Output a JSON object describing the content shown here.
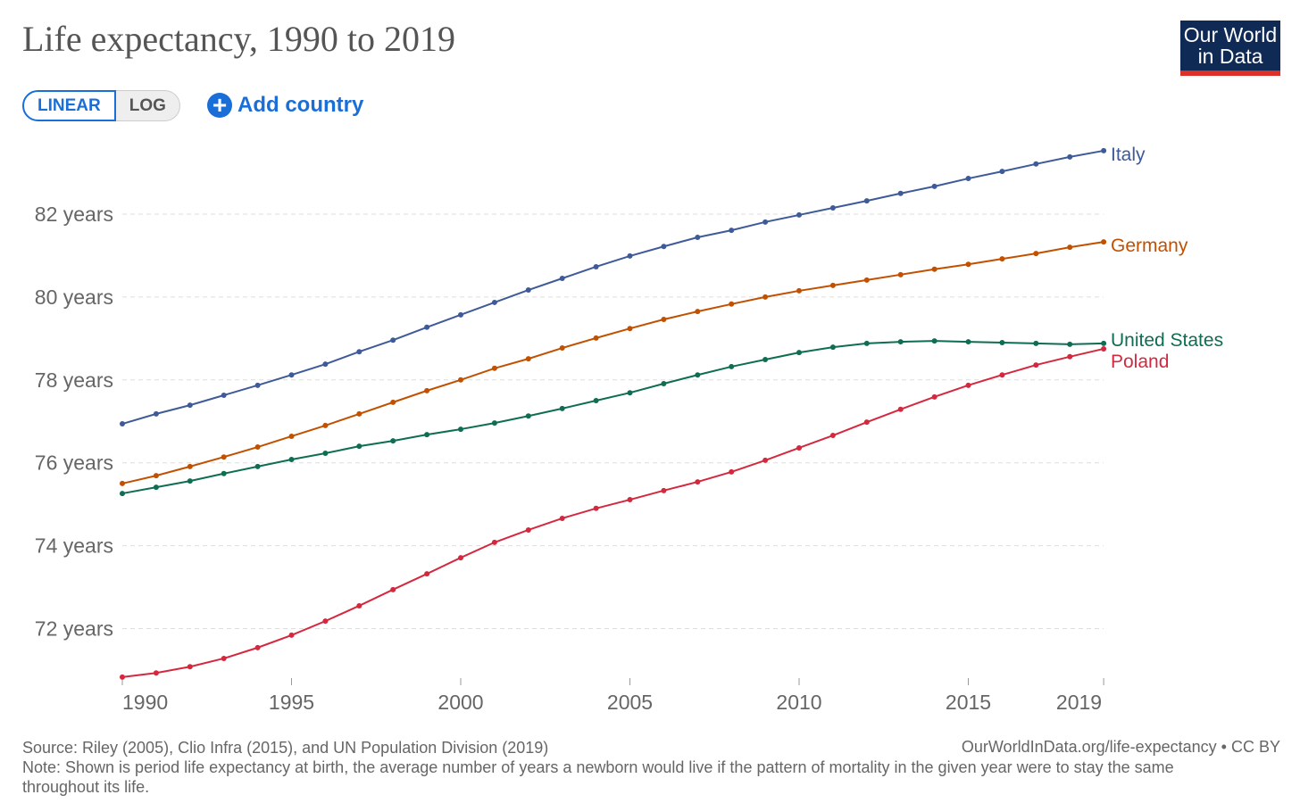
{
  "title": "Life expectancy, 1990 to 2019",
  "logo": {
    "line1": "Our World",
    "line2": "in Data"
  },
  "controls": {
    "linear": "LINEAR",
    "log": "LOG",
    "add_country": "Add country"
  },
  "footer": {
    "source": "Source: Riley (2005), Clio Infra (2015), and UN Population Division (2019)",
    "note": "Note: Shown is period life expectancy at birth, the average number of years a newborn would live if the pattern of mortality in the given year were to stay the same throughout its life.",
    "url": "OurWorldInData.org/life-expectancy • CC BY"
  },
  "chart_data": {
    "type": "line",
    "title": "Life expectancy, 1990 to 2019",
    "grid": true,
    "legend": "right (line end labels)",
    "xlim": [
      1990,
      2019
    ],
    "ylim": [
      70.8,
      83.6
    ],
    "x_ticks": [
      {
        "v": 1990,
        "l": "1990"
      },
      {
        "v": 1995,
        "l": "1995"
      },
      {
        "v": 2000,
        "l": "2000"
      },
      {
        "v": 2005,
        "l": "2005"
      },
      {
        "v": 2010,
        "l": "2010"
      },
      {
        "v": 2015,
        "l": "2015"
      },
      {
        "v": 2019,
        "l": "2019"
      }
    ],
    "y_ticks": [
      {
        "v": 72,
        "l": "72 years"
      },
      {
        "v": 74,
        "l": "74 years"
      },
      {
        "v": 76,
        "l": "76 years"
      },
      {
        "v": 78,
        "l": "78 years"
      },
      {
        "v": 80,
        "l": "80 years"
      },
      {
        "v": 82,
        "l": "82 years"
      }
    ],
    "x": [
      1990,
      1991,
      1992,
      1993,
      1994,
      1995,
      1996,
      1997,
      1998,
      1999,
      2000,
      2001,
      2002,
      2003,
      2004,
      2005,
      2006,
      2007,
      2008,
      2009,
      2010,
      2011,
      2012,
      2013,
      2014,
      2015,
      2016,
      2017,
      2018,
      2019
    ],
    "series": [
      {
        "name": "Italy",
        "color": "#3e5a98",
        "values": [
          76.94,
          77.18,
          77.39,
          77.63,
          77.87,
          78.12,
          78.38,
          78.68,
          78.96,
          79.27,
          79.57,
          79.87,
          80.17,
          80.45,
          80.73,
          80.99,
          81.22,
          81.44,
          81.61,
          81.81,
          81.98,
          82.15,
          82.32,
          82.5,
          82.67,
          82.86,
          83.03,
          83.21,
          83.38,
          83.53
        ]
      },
      {
        "name": "Germany",
        "color": "#c15100",
        "values": [
          75.5,
          75.69,
          75.91,
          76.14,
          76.38,
          76.64,
          76.9,
          77.18,
          77.46,
          77.74,
          78.0,
          78.28,
          78.51,
          78.77,
          79.01,
          79.24,
          79.46,
          79.65,
          79.83,
          80.0,
          80.15,
          80.28,
          80.41,
          80.54,
          80.67,
          80.79,
          80.92,
          81.05,
          81.2,
          81.33
        ]
      },
      {
        "name": "United States",
        "color": "#0e6d52",
        "values": [
          75.26,
          75.41,
          75.56,
          75.74,
          75.91,
          76.08,
          76.23,
          76.4,
          76.53,
          76.68,
          76.81,
          76.96,
          77.13,
          77.31,
          77.5,
          77.69,
          77.91,
          78.12,
          78.32,
          78.49,
          78.66,
          78.79,
          78.88,
          78.92,
          78.94,
          78.92,
          78.9,
          78.88,
          78.86,
          78.88
        ]
      },
      {
        "name": "Poland",
        "color": "#d4283f",
        "values": [
          70.83,
          70.93,
          71.08,
          71.28,
          71.54,
          71.84,
          72.18,
          72.55,
          72.94,
          73.32,
          73.71,
          74.08,
          74.38,
          74.66,
          74.9,
          75.11,
          75.33,
          75.54,
          75.78,
          76.06,
          76.36,
          76.66,
          76.98,
          77.29,
          77.59,
          77.87,
          78.12,
          78.36,
          78.56,
          78.75
        ]
      }
    ]
  }
}
